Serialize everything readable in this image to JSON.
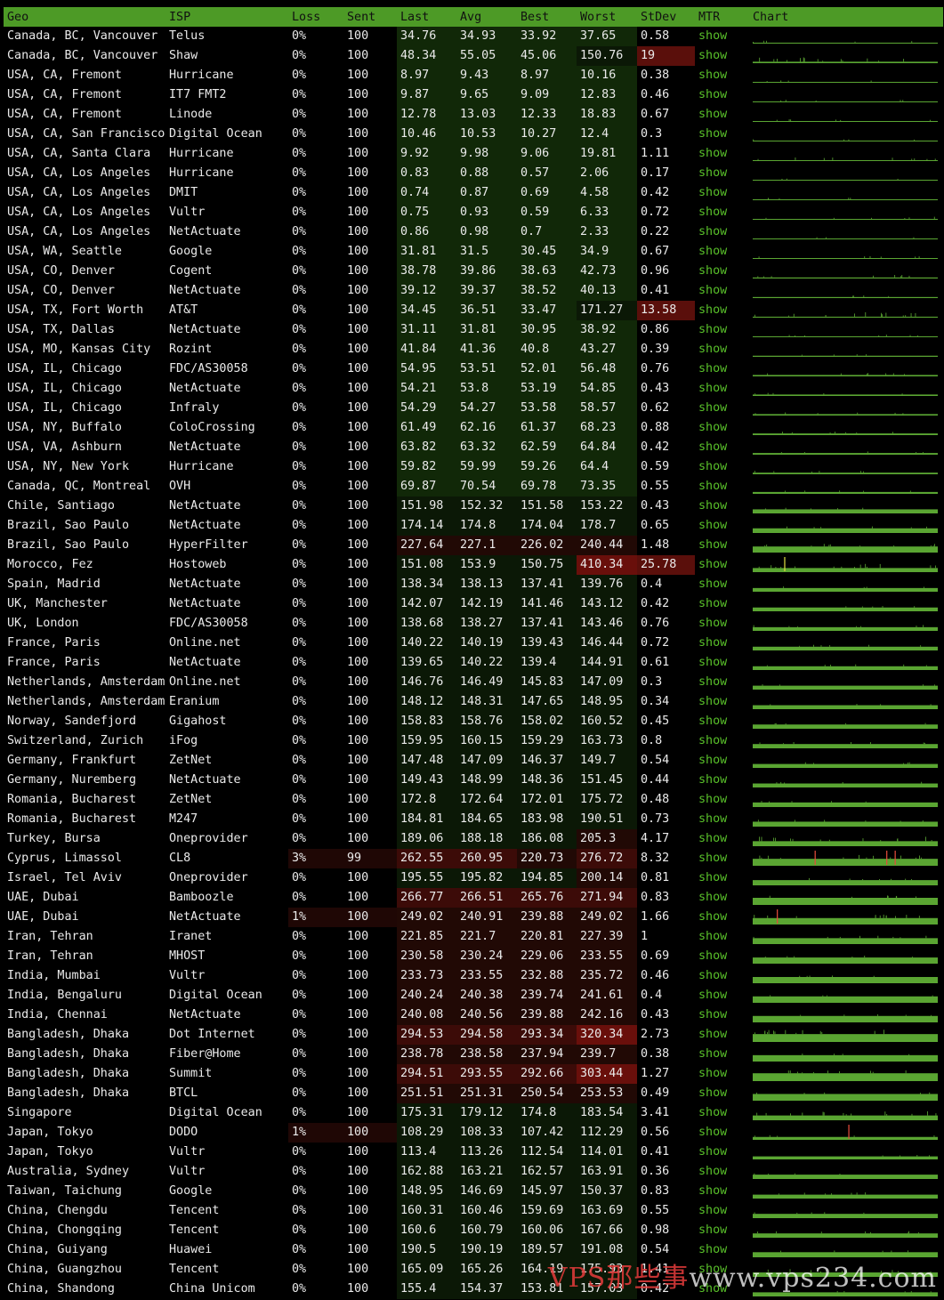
{
  "headers": [
    "Geo",
    "ISP",
    "Loss",
    "Sent",
    "Last",
    "Avg",
    "Best",
    "Worst",
    "StDev",
    "MTR",
    "Chart"
  ],
  "mtr_label": "show",
  "watermark": {
    "brand": "VPS那些事",
    "url": "www.vps234.com"
  },
  "colors": {
    "header": "#4d9a26",
    "mtr": "#59c02a",
    "spark": "#5aa532",
    "spike_red": "#e24a3a",
    "spike_yellow": "#d8d840"
  },
  "rows": [
    [
      "Canada, BC, Vancouver",
      "Telus",
      "0%",
      "100",
      "34.76",
      "34.93",
      "33.92",
      "37.65",
      "0.58"
    ],
    [
      "Canada, BC, Vancouver",
      "Shaw",
      "0%",
      "100",
      "48.34",
      "55.05",
      "45.06",
      "150.76",
      "19"
    ],
    [
      "USA, CA, Fremont",
      "Hurricane",
      "0%",
      "100",
      "8.97",
      "9.43",
      "8.97",
      "10.16",
      "0.38"
    ],
    [
      "USA, CA, Fremont",
      "IT7 FMT2",
      "0%",
      "100",
      "9.87",
      "9.65",
      "9.09",
      "12.83",
      "0.46"
    ],
    [
      "USA, CA, Fremont",
      "Linode",
      "0%",
      "100",
      "12.78",
      "13.03",
      "12.33",
      "18.83",
      "0.67"
    ],
    [
      "USA, CA, San Francisco",
      "Digital Ocean",
      "0%",
      "100",
      "10.46",
      "10.53",
      "10.27",
      "12.4",
      "0.3"
    ],
    [
      "USA, CA, Santa Clara",
      "Hurricane",
      "0%",
      "100",
      "9.92",
      "9.98",
      "9.06",
      "19.81",
      "1.11"
    ],
    [
      "USA, CA, Los Angeles",
      "Hurricane",
      "0%",
      "100",
      "0.83",
      "0.88",
      "0.57",
      "2.06",
      "0.17"
    ],
    [
      "USA, CA, Los Angeles",
      "DMIT",
      "0%",
      "100",
      "0.74",
      "0.87",
      "0.69",
      "4.58",
      "0.42"
    ],
    [
      "USA, CA, Los Angeles",
      "Vultr",
      "0%",
      "100",
      "0.75",
      "0.93",
      "0.59",
      "6.33",
      "0.72"
    ],
    [
      "USA, CA, Los Angeles",
      "NetActuate",
      "0%",
      "100",
      "0.86",
      "0.98",
      "0.7",
      "2.33",
      "0.22"
    ],
    [
      "USA, WA, Seattle",
      "Google",
      "0%",
      "100",
      "31.81",
      "31.5",
      "30.45",
      "34.9",
      "0.67"
    ],
    [
      "USA, CO, Denver",
      "Cogent",
      "0%",
      "100",
      "38.78",
      "39.86",
      "38.63",
      "42.73",
      "0.96"
    ],
    [
      "USA, CO, Denver",
      "NetActuate",
      "0%",
      "100",
      "39.12",
      "39.37",
      "38.52",
      "40.13",
      "0.41"
    ],
    [
      "USA, TX, Fort Worth",
      "AT&T",
      "0%",
      "100",
      "34.45",
      "36.51",
      "33.47",
      "171.27",
      "13.58"
    ],
    [
      "USA, TX, Dallas",
      "NetActuate",
      "0%",
      "100",
      "31.11",
      "31.81",
      "30.95",
      "38.92",
      "0.86"
    ],
    [
      "USA, MO, Kansas City",
      "Rozint",
      "0%",
      "100",
      "41.84",
      "41.36",
      "40.8",
      "43.27",
      "0.39"
    ],
    [
      "USA, IL, Chicago",
      "FDC/AS30058",
      "0%",
      "100",
      "54.95",
      "53.51",
      "52.01",
      "56.48",
      "0.76"
    ],
    [
      "USA, IL, Chicago",
      "NetActuate",
      "0%",
      "100",
      "54.21",
      "53.8",
      "53.19",
      "54.85",
      "0.43"
    ],
    [
      "USA, IL, Chicago",
      "Infraly",
      "0%",
      "100",
      "54.29",
      "54.27",
      "53.58",
      "58.57",
      "0.62"
    ],
    [
      "USA, NY, Buffalo",
      "ColoCrossing",
      "0%",
      "100",
      "61.49",
      "62.16",
      "61.37",
      "68.23",
      "0.88"
    ],
    [
      "USA, VA, Ashburn",
      "NetActuate",
      "0%",
      "100",
      "63.82",
      "63.32",
      "62.59",
      "64.84",
      "0.42"
    ],
    [
      "USA, NY, New York",
      "Hurricane",
      "0%",
      "100",
      "59.82",
      "59.99",
      "59.26",
      "64.4",
      "0.59"
    ],
    [
      "Canada, QC, Montreal",
      "OVH",
      "0%",
      "100",
      "69.87",
      "70.54",
      "69.78",
      "73.35",
      "0.55"
    ],
    [
      "Chile, Santiago",
      "NetActuate",
      "0%",
      "100",
      "151.98",
      "152.32",
      "151.58",
      "153.22",
      "0.43"
    ],
    [
      "Brazil, Sao Paulo",
      "NetActuate",
      "0%",
      "100",
      "174.14",
      "174.8",
      "174.04",
      "178.7",
      "0.65"
    ],
    [
      "Brazil, Sao Paulo",
      "HyperFilter",
      "0%",
      "100",
      "227.64",
      "227.1",
      "226.02",
      "240.44",
      "1.48"
    ],
    [
      "Morocco, Fez",
      "Hostoweb",
      "0%",
      "100",
      "151.08",
      "153.9",
      "150.75",
      "410.34",
      "25.78"
    ],
    [
      "Spain, Madrid",
      "NetActuate",
      "0%",
      "100",
      "138.34",
      "138.13",
      "137.41",
      "139.76",
      "0.4"
    ],
    [
      "UK, Manchester",
      "NetActuate",
      "0%",
      "100",
      "142.07",
      "142.19",
      "141.46",
      "143.12",
      "0.42"
    ],
    [
      "UK, London",
      "FDC/AS30058",
      "0%",
      "100",
      "138.68",
      "138.27",
      "137.41",
      "143.46",
      "0.76"
    ],
    [
      "France, Paris",
      "Online.net",
      "0%",
      "100",
      "140.22",
      "140.19",
      "139.43",
      "146.44",
      "0.72"
    ],
    [
      "France, Paris",
      "NetActuate",
      "0%",
      "100",
      "139.65",
      "140.22",
      "139.4",
      "144.91",
      "0.61"
    ],
    [
      "Netherlands, Amsterdam",
      "Online.net",
      "0%",
      "100",
      "146.76",
      "146.49",
      "145.83",
      "147.09",
      "0.3"
    ],
    [
      "Netherlands, Amsterdam",
      "Eranium",
      "0%",
      "100",
      "148.12",
      "148.31",
      "147.65",
      "148.95",
      "0.34"
    ],
    [
      "Norway, Sandefjord",
      "Gigahost",
      "0%",
      "100",
      "158.83",
      "158.76",
      "158.02",
      "160.52",
      "0.45"
    ],
    [
      "Switzerland, Zurich",
      "iFog",
      "0%",
      "100",
      "159.95",
      "160.15",
      "159.29",
      "163.73",
      "0.8"
    ],
    [
      "Germany, Frankfurt",
      "ZetNet",
      "0%",
      "100",
      "147.48",
      "147.09",
      "146.37",
      "149.7",
      "0.54"
    ],
    [
      "Germany, Nuremberg",
      "NetActuate",
      "0%",
      "100",
      "149.43",
      "148.99",
      "148.36",
      "151.45",
      "0.44"
    ],
    [
      "Romania, Bucharest",
      "ZetNet",
      "0%",
      "100",
      "172.8",
      "172.64",
      "172.01",
      "175.72",
      "0.48"
    ],
    [
      "Romania, Bucharest",
      "M247",
      "0%",
      "100",
      "184.81",
      "184.65",
      "183.98",
      "190.51",
      "0.73"
    ],
    [
      "Turkey, Bursa",
      "Oneprovider",
      "0%",
      "100",
      "189.06",
      "188.18",
      "186.08",
      "205.3",
      "4.17"
    ],
    [
      "Cyprus, Limassol",
      "CL8",
      "3%",
      "99",
      "262.55",
      "260.95",
      "220.73",
      "276.72",
      "8.32"
    ],
    [
      "Israel, Tel Aviv",
      "Oneprovider",
      "0%",
      "100",
      "195.55",
      "195.82",
      "194.85",
      "200.14",
      "0.81"
    ],
    [
      "UAE, Dubai",
      "Bamboozle",
      "0%",
      "100",
      "266.77",
      "266.51",
      "265.76",
      "271.94",
      "0.83"
    ],
    [
      "UAE, Dubai",
      "NetActuate",
      "1%",
      "100",
      "249.02",
      "240.91",
      "239.88",
      "249.02",
      "1.66"
    ],
    [
      "Iran, Tehran",
      "Iranet",
      "0%",
      "100",
      "221.85",
      "221.7",
      "220.81",
      "227.39",
      "1"
    ],
    [
      "Iran, Tehran",
      "MHOST",
      "0%",
      "100",
      "230.58",
      "230.24",
      "229.06",
      "233.55",
      "0.69"
    ],
    [
      "India, Mumbai",
      "Vultr",
      "0%",
      "100",
      "233.73",
      "233.55",
      "232.88",
      "235.72",
      "0.46"
    ],
    [
      "India, Bengaluru",
      "Digital Ocean",
      "0%",
      "100",
      "240.24",
      "240.38",
      "239.74",
      "241.61",
      "0.4"
    ],
    [
      "India, Chennai",
      "NetActuate",
      "0%",
      "100",
      "240.08",
      "240.56",
      "239.88",
      "242.16",
      "0.43"
    ],
    [
      "Bangladesh, Dhaka",
      "Dot Internet",
      "0%",
      "100",
      "294.53",
      "294.58",
      "293.34",
      "320.34",
      "2.73"
    ],
    [
      "Bangladesh, Dhaka",
      "Fiber@Home",
      "0%",
      "100",
      "238.78",
      "238.58",
      "237.94",
      "239.7",
      "0.38"
    ],
    [
      "Bangladesh, Dhaka",
      "Summit",
      "0%",
      "100",
      "294.51",
      "293.55",
      "292.66",
      "303.44",
      "1.27"
    ],
    [
      "Bangladesh, Dhaka",
      "BTCL",
      "0%",
      "100",
      "251.51",
      "251.31",
      "250.54",
      "253.53",
      "0.49"
    ],
    [
      "Singapore",
      "Digital Ocean",
      "0%",
      "100",
      "175.31",
      "179.12",
      "174.8",
      "183.54",
      "3.41"
    ],
    [
      "Japan, Tokyo",
      "DODO",
      "1%",
      "100",
      "108.29",
      "108.33",
      "107.42",
      "112.29",
      "0.56"
    ],
    [
      "Japan, Tokyo",
      "Vultr",
      "0%",
      "100",
      "113.4",
      "113.26",
      "112.54",
      "114.01",
      "0.41"
    ],
    [
      "Australia, Sydney",
      "Vultr",
      "0%",
      "100",
      "162.88",
      "163.21",
      "162.57",
      "163.91",
      "0.36"
    ],
    [
      "Taiwan, Taichung",
      "Google",
      "0%",
      "100",
      "148.95",
      "146.69",
      "145.97",
      "150.37",
      "0.83"
    ],
    [
      "China, Chengdu",
      "Tencent",
      "0%",
      "100",
      "160.31",
      "160.46",
      "159.69",
      "163.69",
      "0.55"
    ],
    [
      "China, Chongqing",
      "Tencent",
      "0%",
      "100",
      "160.6",
      "160.79",
      "160.06",
      "167.66",
      "0.98"
    ],
    [
      "China, Guiyang",
      "Huawei",
      "0%",
      "100",
      "190.5",
      "190.19",
      "189.57",
      "191.08",
      "0.54"
    ],
    [
      "China, Guangzhou",
      "Tencent",
      "0%",
      "100",
      "165.09",
      "165.26",
      "164.19",
      "175.93",
      "1.41"
    ],
    [
      "China, Shandong",
      "China Unicom",
      "0%",
      "100",
      "155.4",
      "154.37",
      "153.81",
      "157.03",
      "0.42"
    ]
  ]
}
